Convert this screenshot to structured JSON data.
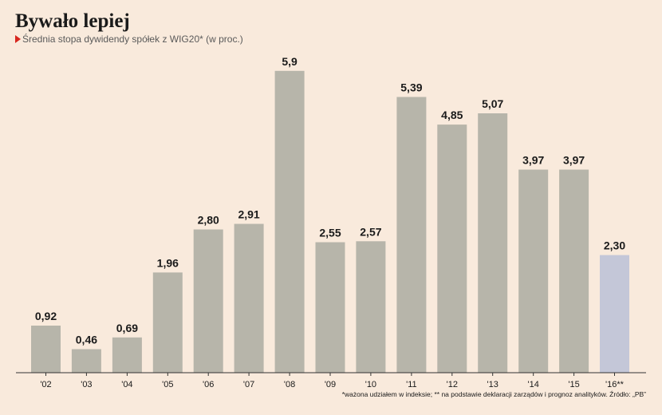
{
  "chart_data": {
    "type": "bar",
    "title": "Bywało lepiej",
    "subtitle": "Średnia stopa dywidendy spółek z WIG20* (w proc.)",
    "categories": [
      "'02",
      "'03",
      "'04",
      "'05",
      "'06",
      "'07",
      "'08",
      "'09",
      "'10",
      "'11",
      "'12",
      "'13",
      "'14",
      "'15",
      "'16**"
    ],
    "values": [
      0.92,
      0.46,
      0.69,
      1.96,
      2.8,
      2.91,
      5.9,
      2.55,
      2.57,
      5.39,
      4.85,
      5.07,
      3.97,
      3.97,
      2.3
    ],
    "value_labels": [
      "0,92",
      "0,46",
      "0,69",
      "1,96",
      "2,80",
      "2,91",
      "5,9",
      "2,55",
      "2,57",
      "5,39",
      "4,85",
      "5,07",
      "3,97",
      "3,97",
      "2,30"
    ],
    "ylim": [
      0,
      6.1
    ],
    "xlabel": "",
    "ylabel": "",
    "grid": false,
    "colors": {
      "bar": "#b7b5aa",
      "forecast_bar": "#c4c7d8",
      "axis": "#333333",
      "accent": "#d7261e",
      "background": "#f9eadc"
    },
    "forecast_index": 14,
    "footnote": "*ważona udziałem w indeksie; ** na podstawie deklaracji zarządów i prognoz analityków. Źródło: „PB”"
  }
}
